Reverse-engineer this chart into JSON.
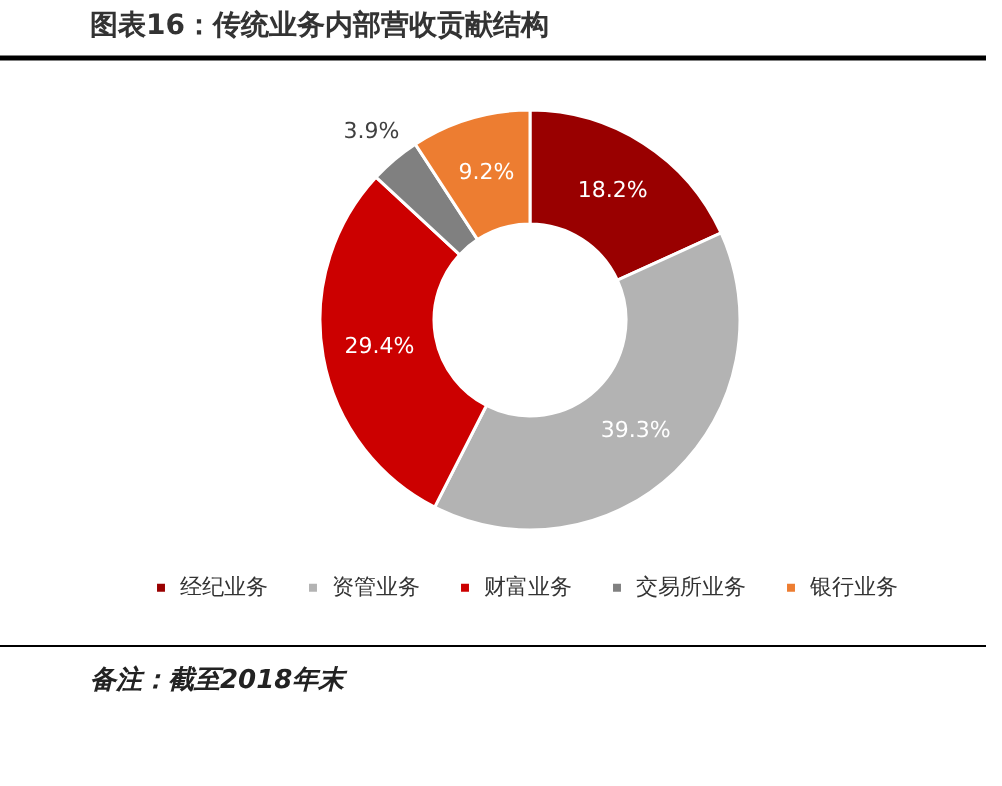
{
  "chart_data": {
    "type": "donut",
    "title": "图表16：传统业务内部营收贡献结构",
    "categories": [
      "经纪业务",
      "资管业务",
      "财富业务",
      "交易所业务",
      "银行业务"
    ],
    "values": [
      18.2,
      39.3,
      29.4,
      3.9,
      9.2
    ],
    "value_labels": [
      "18.2%",
      "39.3%",
      "29.4%",
      "3.9%",
      "9.2%"
    ],
    "colors": [
      "#990000",
      "#b3b3b3",
      "#cc0000",
      "#808080",
      "#ed7d31"
    ],
    "legend": "bottom",
    "annotations": [
      "备注：截至2018年末"
    ]
  }
}
